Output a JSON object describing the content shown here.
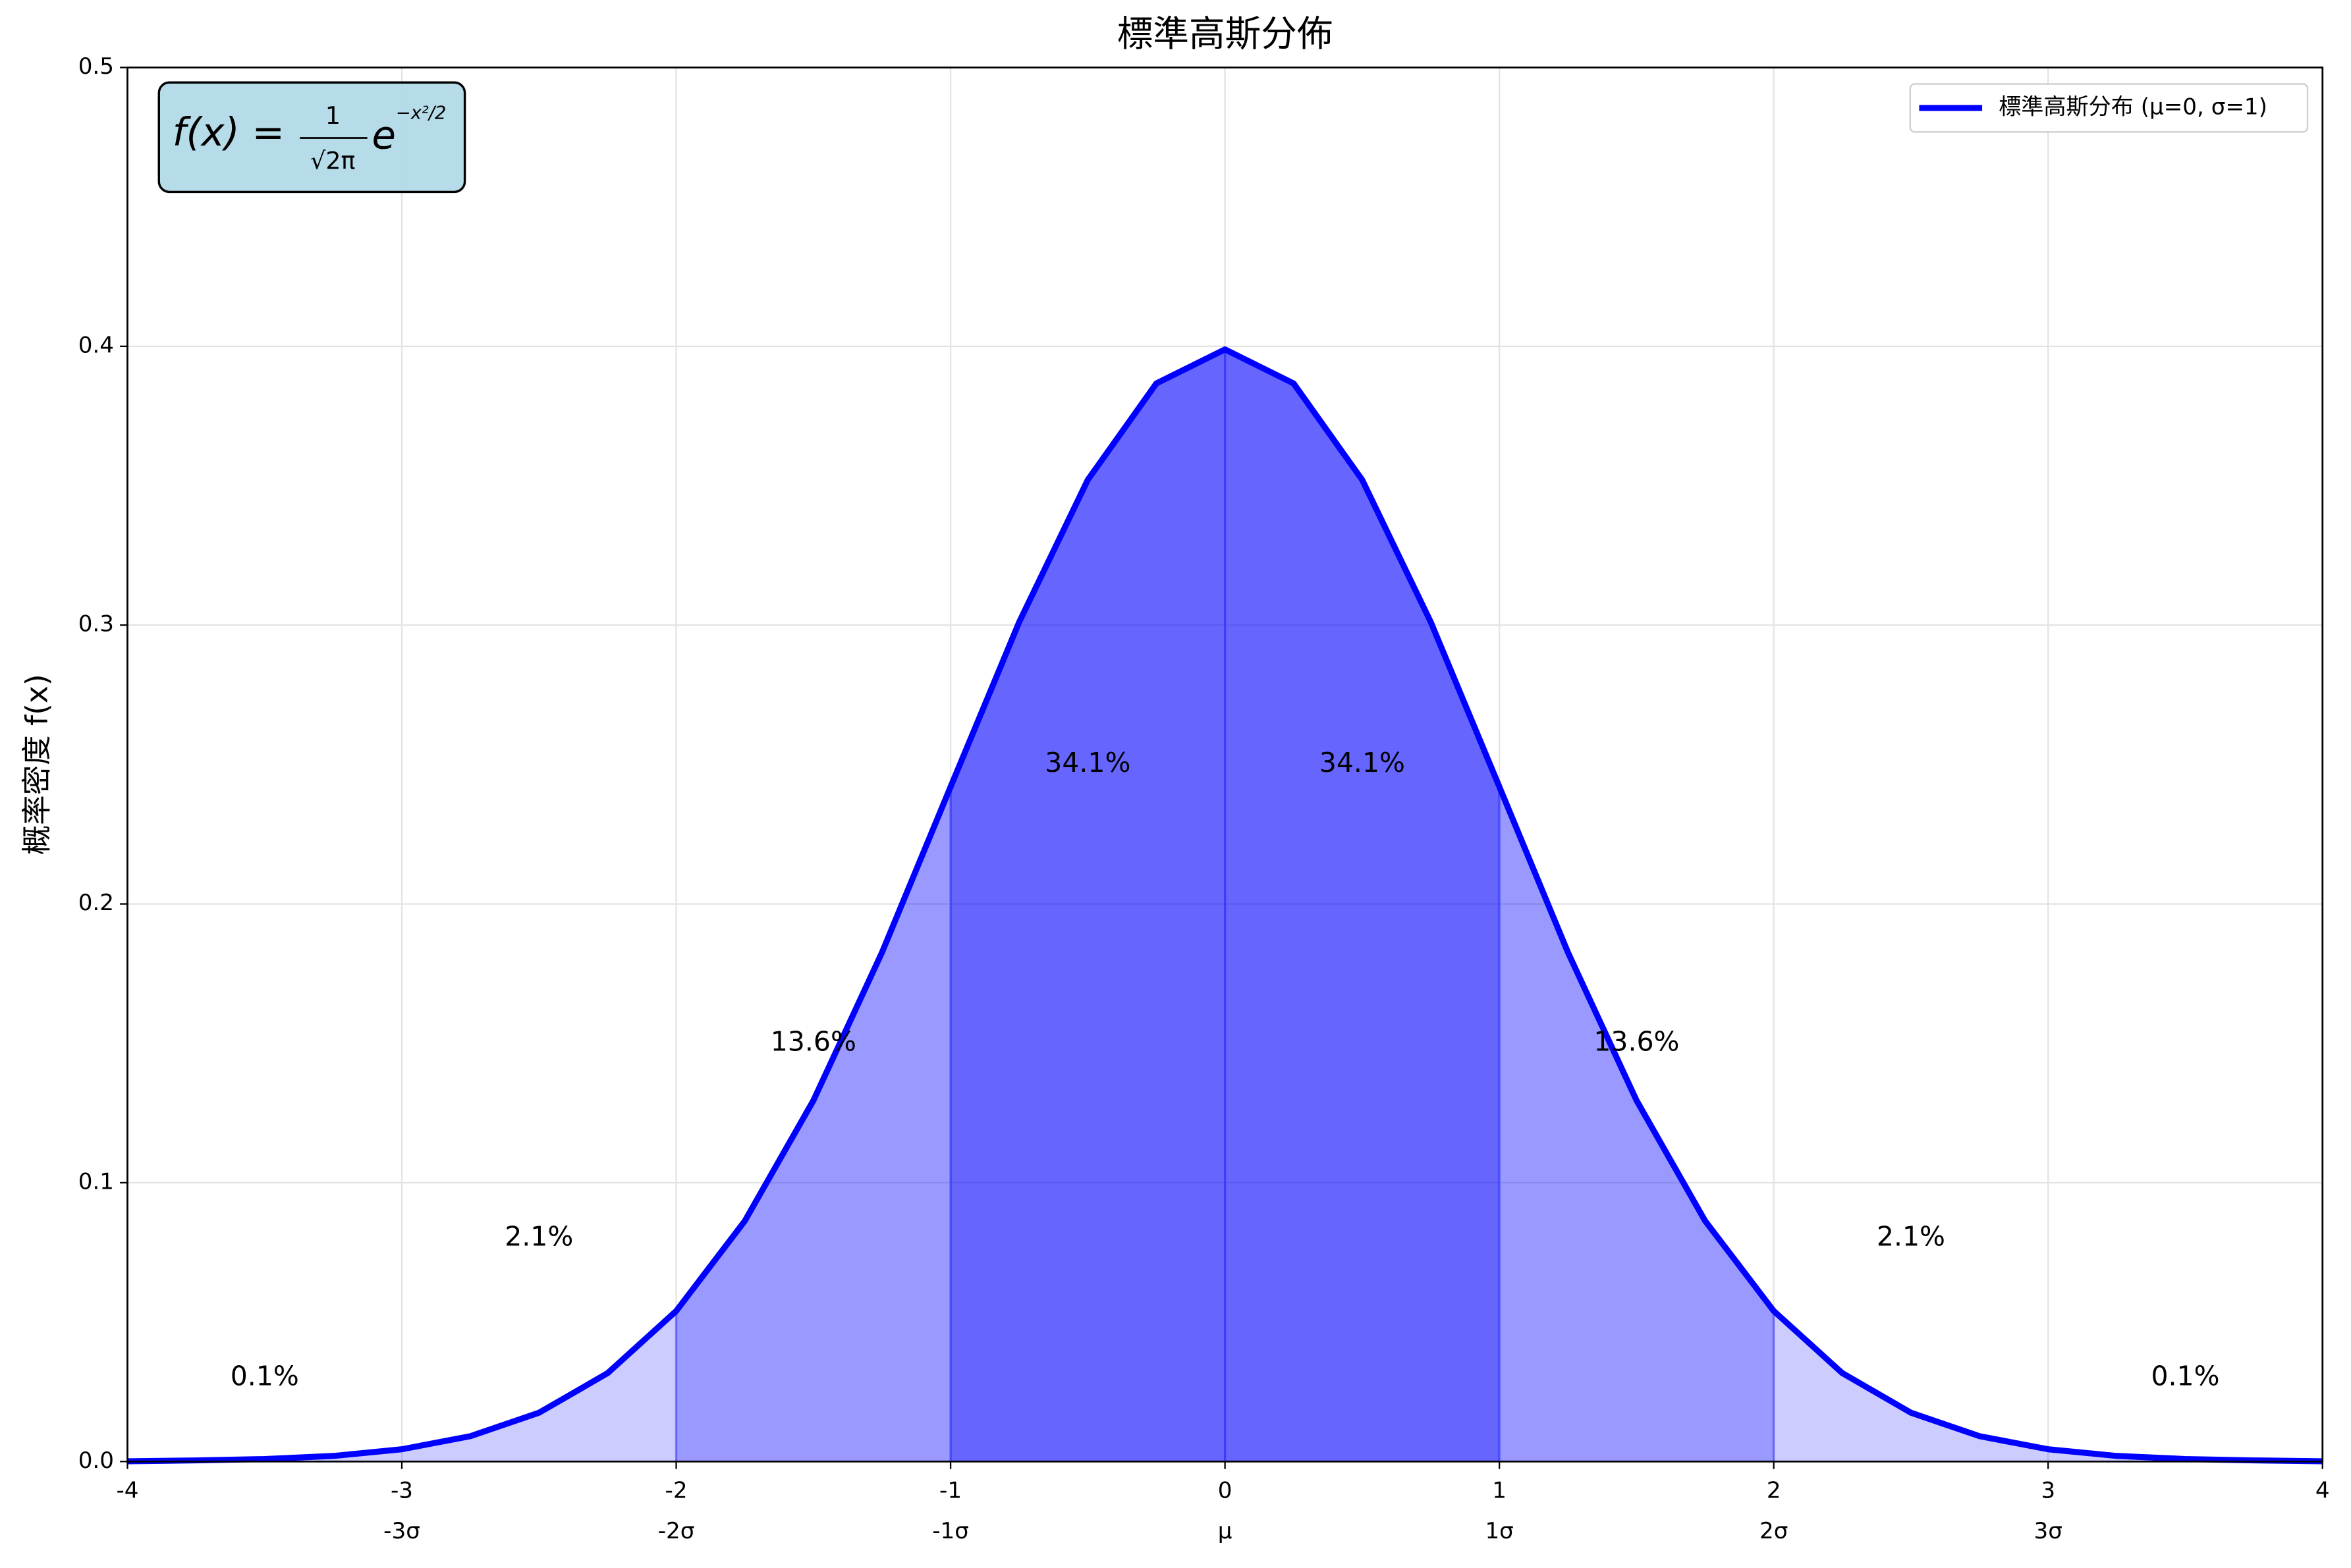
{
  "chart_data": {
    "type": "line",
    "title": "標準高斯分佈",
    "ylabel": "概率密度 f(x)",
    "x": [
      -4,
      -3.75,
      -3.5,
      -3.25,
      -3,
      -2.75,
      -2.5,
      -2.25,
      -2,
      -1.75,
      -1.5,
      -1.25,
      -1,
      -0.75,
      -0.5,
      -0.25,
      0,
      0.25,
      0.5,
      0.75,
      1,
      1.25,
      1.5,
      1.75,
      2,
      2.25,
      2.5,
      2.75,
      3,
      3.25,
      3.5,
      3.75,
      4
    ],
    "series": [
      {
        "name": "標準高斯分布 (μ=0, σ=1)",
        "color": "#0000ff",
        "values": [
          0.0001,
          0.0004,
          0.0009,
          0.002,
          0.0044,
          0.0091,
          0.0175,
          0.0317,
          0.054,
          0.0863,
          0.1295,
          0.1826,
          0.242,
          0.3011,
          0.3521,
          0.3867,
          0.3989,
          0.3867,
          0.3521,
          0.3011,
          0.242,
          0.1826,
          0.1295,
          0.0863,
          0.054,
          0.0317,
          0.0175,
          0.0091,
          0.0044,
          0.002,
          0.0009,
          0.0004,
          0.0001
        ]
      }
    ],
    "xlim": [
      -4,
      4
    ],
    "ylim": [
      0,
      0.5
    ],
    "xticks": [
      -4,
      -3,
      -2,
      -1,
      0,
      1,
      2,
      3,
      4
    ],
    "yticks": [
      {
        "value": 0,
        "label": "0.0"
      },
      0.1,
      0.2,
      0.3,
      0.4,
      0.5
    ],
    "sigma_ticks": [
      {
        "value": -3,
        "label": "-3σ"
      },
      {
        "value": -2,
        "label": "-2σ"
      },
      {
        "value": -1,
        "label": "-1σ"
      },
      {
        "value": 0,
        "label": "μ"
      },
      {
        "value": 1,
        "label": "1σ"
      },
      {
        "value": 2,
        "label": "2σ"
      },
      {
        "value": 3,
        "label": "3σ"
      }
    ],
    "shade_bounds": [
      -4,
      -2,
      -1,
      1,
      2,
      4
    ],
    "shade_opacity": [
      0.2,
      0.4,
      0.6,
      0.4,
      0.2
    ],
    "vlines": [
      -2,
      -1,
      0,
      1,
      2
    ],
    "annotations": [
      {
        "text": "0.1%",
        "x": -3.5,
        "y": 0.03
      },
      {
        "text": "2.1%",
        "x": -2.5,
        "y": 0.08
      },
      {
        "text": "13.6%",
        "x": -1.5,
        "y": 0.15
      },
      {
        "text": "34.1%",
        "x": -0.5,
        "y": 0.25
      },
      {
        "text": "34.1%",
        "x": 0.5,
        "y": 0.25
      },
      {
        "text": "13.6%",
        "x": 1.5,
        "y": 0.15
      },
      {
        "text": "2.1%",
        "x": 2.5,
        "y": 0.08
      },
      {
        "text": "0.1%",
        "x": 3.5,
        "y": 0.03
      }
    ],
    "formula": {
      "lhs": "f(x) =",
      "num": "1",
      "den": "√2π",
      "base": "e",
      "exp": "−x²/2"
    },
    "grid": true,
    "legend": "upper right"
  }
}
